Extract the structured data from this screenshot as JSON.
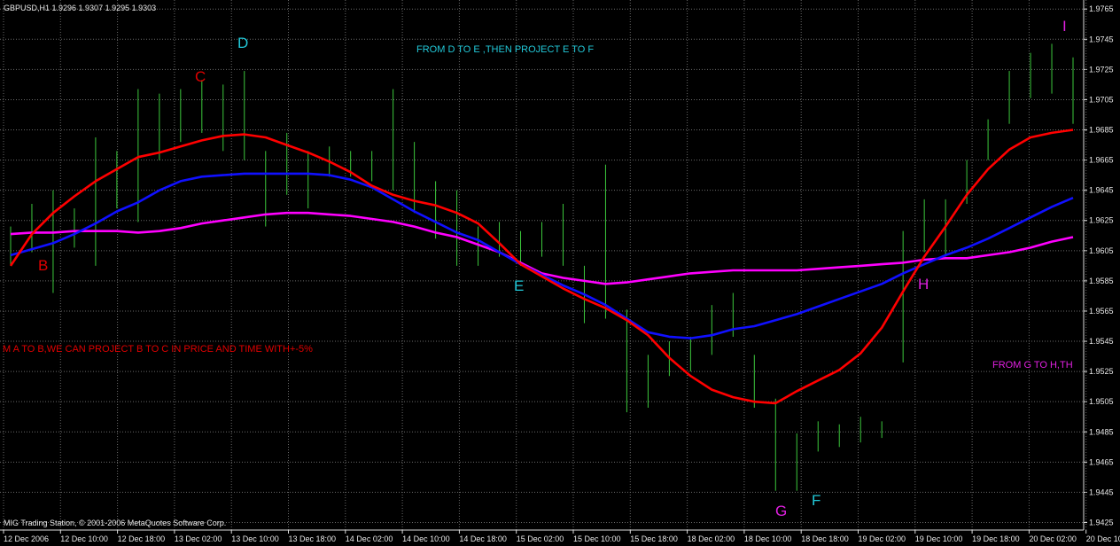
{
  "chart_data": {
    "type": "line",
    "title": "GBPUSD,H1  1.9296 1.9307 1.9295 1.9303",
    "footer": "MIG Trading Station, © 2001-2006 MetaQuotes Software Corp.",
    "annotations": [
      {
        "text": "FROM D TO E ,THEN PROJECT E TO F",
        "color": "#22c8d8"
      },
      {
        "text": "M A TO B,WE CAN PROJECT B TO C IN PRICE AND TIME WITH+-5%",
        "color": "#e00000"
      },
      {
        "text": "FROM G TO H,TH",
        "color": "#e020e0"
      },
      {
        "text": "D",
        "color": "#22c8d8"
      },
      {
        "text": "C",
        "color": "#e00000"
      },
      {
        "text": "B",
        "color": "#e00000"
      },
      {
        "text": "E",
        "color": "#22c8d8"
      },
      {
        "text": "H",
        "color": "#e020e0"
      },
      {
        "text": "G",
        "color": "#e020e0"
      },
      {
        "text": "F",
        "color": "#22c8d8"
      },
      {
        "text": "I",
        "color": "#e020e0"
      }
    ],
    "categories": [
      null,
      null,
      null,
      null,
      null,
      null,
      null,
      null,
      null,
      null,
      null,
      null,
      null,
      null,
      null,
      null,
      null,
      null,
      null,
      null,
      null,
      null,
      null,
      null,
      null,
      null,
      null,
      null,
      null,
      null,
      null,
      null,
      null,
      null,
      null,
      null,
      null,
      null,
      null,
      null,
      null,
      null,
      null,
      null,
      null,
      null,
      null,
      null,
      null,
      null,
      null
    ],
    "x_labels": [
      "12 Dec 2006",
      "12 Dec 10:00",
      "12 Dec 18:00",
      "13 Dec 02:00",
      "13 Dec 10:00",
      "13 Dec 18:00",
      "14 Dec 02:00",
      "14 Dec 10:00",
      "14 Dec 18:00",
      "15 Dec 02:00",
      "15 Dec 10:00",
      "15 Dec 18:00",
      "18 Dec 02:00",
      "18 Dec 10:00",
      "18 Dec 18:00",
      "19 Dec 02:00",
      "19 Dec 10:00",
      "19 Dec 18:00",
      "20 Dec 02:00",
      "20 Dec 10:00"
    ],
    "ylim": [
      1.942,
      1.9771
    ],
    "yticks": [
      1.9765,
      1.9745,
      1.9725,
      1.9705,
      1.9685,
      1.9665,
      1.9645,
      1.9625,
      1.9605,
      1.9585,
      1.9565,
      1.9545,
      1.9525,
      1.9505,
      1.9485,
      1.9465,
      1.9445,
      1.9425
    ],
    "grid": true,
    "price": {
      "color": "#3cc83c",
      "high": [
        1.9621,
        1.9636,
        1.9645,
        1.9633,
        1.968,
        1.9671,
        1.9712,
        1.9709,
        1.9712,
        1.9718,
        1.9715,
        1.9724,
        1.9671,
        1.9683,
        1.9671,
        1.9674,
        1.9671,
        1.9671,
        1.9712,
        1.9677,
        1.9651,
        1.9645,
        1.9621,
        1.9624,
        1.9618,
        1.9624,
        1.9636,
        1.9595,
        1.9662,
        1.9566,
        1.9536,
        1.9545,
        1.9548,
        1.9569,
        1.9577,
        1.9536,
        1.9507,
        1.9484,
        1.9492,
        1.949,
        1.9495,
        1.9492,
        1.9618,
        1.9639,
        1.9639,
        1.9665,
        1.9692,
        1.9724,
        1.9736,
        1.9742,
        1.9733
      ],
      "low": [
        1.9595,
        1.9604,
        1.9577,
        1.9607,
        1.9595,
        1.9633,
        1.9624,
        1.9665,
        1.9677,
        1.9683,
        1.9671,
        1.9665,
        1.9621,
        1.9642,
        1.9633,
        1.9654,
        1.9654,
        1.9651,
        1.9645,
        1.963,
        1.9613,
        1.9595,
        1.9595,
        1.9601,
        1.9595,
        1.9601,
        1.9595,
        1.9557,
        1.956,
        1.9498,
        1.9501,
        1.9522,
        1.9525,
        1.9536,
        1.9548,
        1.9501,
        1.9446,
        1.9446,
        1.9472,
        1.9475,
        1.9478,
        1.9481,
        1.9531,
        1.9604,
        1.9601,
        1.9636,
        1.9665,
        1.9689,
        1.9706,
        1.9709,
        1.9689
      ]
    },
    "series": [
      {
        "color": "#ff00ff",
        "values": [
          1.9616,
          1.9617,
          1.9617,
          1.9618,
          1.9618,
          1.9618,
          1.9617,
          1.9618,
          1.962,
          1.9623,
          1.9625,
          1.9627,
          1.9629,
          1.963,
          1.963,
          1.9629,
          1.9628,
          1.9626,
          1.9624,
          1.9621,
          1.9617,
          1.9614,
          1.9609,
          1.9604,
          1.9597,
          1.959,
          1.9587,
          1.9585,
          1.9583,
          1.9584,
          1.9586,
          1.9588,
          1.959,
          1.9591,
          1.9592,
          1.9592,
          1.9592,
          1.9592,
          1.9593,
          1.9594,
          1.9595,
          1.9596,
          1.9597,
          1.9599,
          1.96,
          1.96,
          1.9602,
          1.9604,
          1.9607,
          1.9611,
          1.9614
        ]
      },
      {
        "color": "#1010ff",
        "values": [
          1.9602,
          1.9606,
          1.961,
          1.9616,
          1.9623,
          1.9631,
          1.9637,
          1.9645,
          1.9651,
          1.9654,
          1.9655,
          1.9656,
          1.9656,
          1.9656,
          1.9656,
          1.9655,
          1.9652,
          1.9647,
          1.9639,
          1.9631,
          1.9624,
          1.9617,
          1.9612,
          1.9604,
          1.9596,
          1.9589,
          1.9582,
          1.9576,
          1.9569,
          1.956,
          1.9551,
          1.9548,
          1.9547,
          1.9549,
          1.9553,
          1.9555,
          1.9559,
          1.9563,
          1.9568,
          1.9573,
          1.9578,
          1.9583,
          1.959,
          1.9596,
          1.9602,
          1.9607,
          1.9613,
          1.962,
          1.9627,
          1.9634,
          1.964
        ]
      },
      {
        "color": "#ff0000",
        "values": [
          1.9595,
          1.9616,
          1.963,
          1.9641,
          1.9651,
          1.9659,
          1.9667,
          1.967,
          1.9674,
          1.9678,
          1.9681,
          1.9682,
          1.968,
          1.9675,
          1.967,
          1.9664,
          1.9657,
          1.9648,
          1.9642,
          1.9638,
          1.9635,
          1.963,
          1.9623,
          1.961,
          1.9596,
          1.9588,
          1.958,
          1.9573,
          1.9567,
          1.9559,
          1.9549,
          1.9534,
          1.9522,
          1.9513,
          1.9508,
          1.9505,
          1.9504,
          1.9512,
          1.9519,
          1.9526,
          1.9537,
          1.9554,
          1.9578,
          1.9601,
          1.9621,
          1.9642,
          1.9659,
          1.9672,
          1.968,
          1.9683,
          1.9685
        ]
      }
    ]
  }
}
